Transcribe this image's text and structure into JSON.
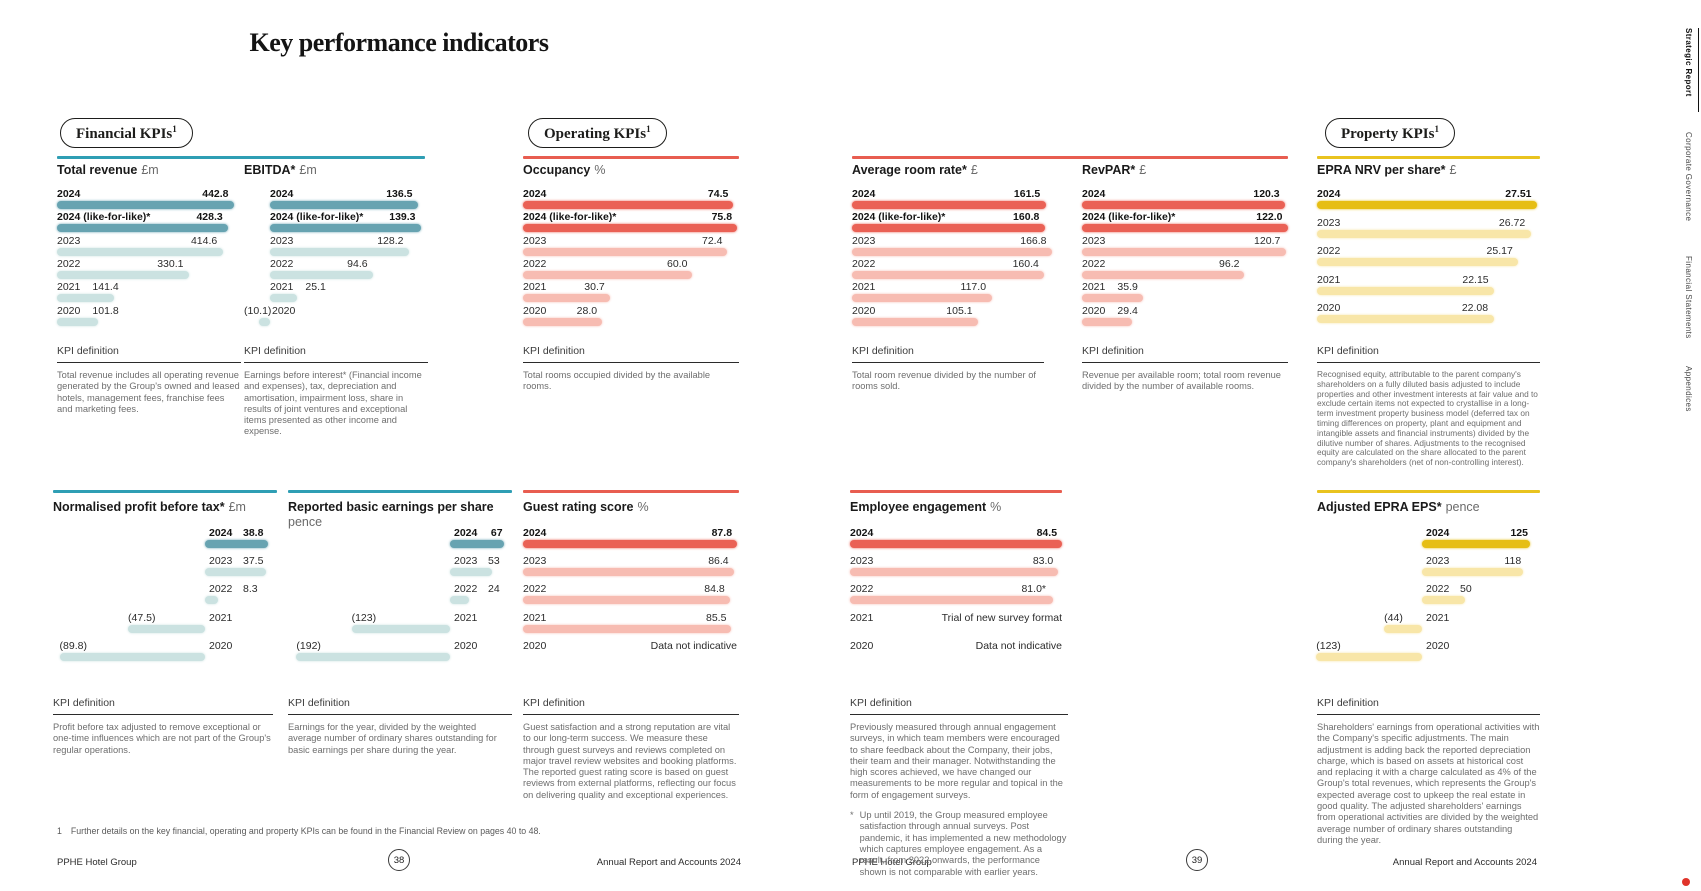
{
  "title": "Key performance indicators",
  "labels": {
    "kpi_definition": "KPI definition"
  },
  "accent_dot_color": "#e0342a",
  "groups": [
    {
      "id": "financial",
      "label": "Financial KPIs",
      "sup": "1",
      "rule_color": "#2F9EB4",
      "bar_dark": "#67A3B1",
      "bar_light": "#CBE2E1"
    },
    {
      "id": "operating",
      "label": "Operating KPIs",
      "sup": "1",
      "rule_color": "#E85D50",
      "bar_dark": "#EA6155",
      "bar_light": "#F7BCB2"
    },
    {
      "id": "property",
      "label": "Property KPIs",
      "sup": "1",
      "rule_color": "#E9C31F",
      "bar_dark": "#E6BE14",
      "bar_light": "#F8E6A8"
    }
  ],
  "chart_data": [
    {
      "id": "total-revenue",
      "type": "bar",
      "group": "financial",
      "title": "Total revenue",
      "unit": "£m",
      "categories": [
        "2024",
        "2024 (like-for-like)*",
        "2023",
        "2022",
        "2021",
        "2020"
      ],
      "values": [
        442.8,
        428.3,
        414.6,
        330.1,
        141.4,
        101.8
      ],
      "displays": [
        "442.8",
        "428.3",
        "414.6",
        "330.1",
        "141.4",
        "101.8"
      ],
      "emphasis": [
        true,
        true,
        false,
        false,
        false,
        false
      ],
      "definition": "Total revenue includes all operating revenue generated by the Group's owned and leased hotels, management fees, franchise fees and marketing fees."
    },
    {
      "id": "ebitda",
      "type": "bar",
      "group": "financial",
      "title": "EBITDA*",
      "unit": "£m",
      "categories": [
        "2024",
        "2024 (like-for-like)*",
        "2023",
        "2022",
        "2021",
        "2020"
      ],
      "values": [
        136.5,
        139.3,
        128.2,
        94.6,
        25.1,
        -10.1
      ],
      "displays": [
        "136.5",
        "139.3",
        "128.2",
        "94.6",
        "25.1",
        "(10.1)"
      ],
      "emphasis": [
        true,
        true,
        false,
        false,
        false,
        false
      ],
      "definition": "Earnings before interest* (Financial income and expenses), tax, depreciation and amortisation, impairment loss, share in results of joint ventures and exceptional items presented as other income and expense."
    },
    {
      "id": "occupancy",
      "type": "bar",
      "group": "operating",
      "title": "Occupancy",
      "unit": "%",
      "categories": [
        "2024",
        "2024 (like-for-like)*",
        "2023",
        "2022",
        "2021",
        "2020"
      ],
      "values": [
        74.5,
        75.8,
        72.4,
        60.0,
        30.7,
        28.0
      ],
      "displays": [
        "74.5",
        "75.8",
        "72.4",
        "60.0",
        "30.7",
        "28.0"
      ],
      "emphasis": [
        true,
        true,
        false,
        false,
        false,
        false
      ],
      "definition": "Total rooms occupied divided by the available rooms."
    },
    {
      "id": "avg-room-rate",
      "type": "bar",
      "group": "operating",
      "title": "Average room rate*",
      "unit": "£",
      "categories": [
        "2024",
        "2024 (like-for-like)*",
        "2023",
        "2022",
        "2021",
        "2020"
      ],
      "values": [
        161.5,
        160.8,
        166.8,
        160.4,
        117.0,
        105.1
      ],
      "displays": [
        "161.5",
        "160.8",
        "166.8",
        "160.4",
        "117.0",
        "105.1"
      ],
      "emphasis": [
        true,
        true,
        false,
        false,
        false,
        false
      ],
      "definition": "Total room revenue divided by the number of rooms sold."
    },
    {
      "id": "revpar",
      "type": "bar",
      "group": "operating",
      "title": "RevPAR*",
      "unit": "£",
      "categories": [
        "2024",
        "2024 (like-for-like)*",
        "2023",
        "2022",
        "2021",
        "2020"
      ],
      "values": [
        120.3,
        122.0,
        120.7,
        96.2,
        35.9,
        29.4
      ],
      "displays": [
        "120.3",
        "122.0",
        "120.7",
        "96.2",
        "35.9",
        "29.4"
      ],
      "emphasis": [
        true,
        true,
        false,
        false,
        false,
        false
      ],
      "definition": "Revenue per available room; total room revenue divided by the number of available rooms."
    },
    {
      "id": "epra-nrv",
      "type": "bar",
      "group": "property",
      "title": "EPRA NRV per share*",
      "unit": "£",
      "categories": [
        "2024",
        "2023",
        "2022",
        "2021",
        "2020"
      ],
      "values": [
        27.51,
        26.72,
        25.17,
        22.15,
        22.08
      ],
      "displays": [
        "27.51",
        "26.72",
        "25.17",
        "22.15",
        "22.08"
      ],
      "emphasis": [
        true,
        false,
        false,
        false,
        false
      ],
      "definition": "Recognised equity, attributable to the parent company's shareholders on a fully diluted basis adjusted to include properties and other investment interests at fair value and to exclude certain items not expected to crystallise in a long-term investment property business model (deferred tax on timing differences on property, plant and equipment and intangible assets and financial instruments) divided by the dilutive number of shares. Adjustments to the recognised equity are calculated on the share allocated to the parent company's shareholders (net of non-controlling interest)."
    },
    {
      "id": "normalised-pbt",
      "type": "bar",
      "group": "financial",
      "title": "Normalised profit before tax*",
      "unit": "£m",
      "categories": [
        "2024",
        "2023",
        "2022",
        "2021",
        "2020"
      ],
      "values": [
        38.8,
        37.5,
        8.3,
        -47.5,
        -89.8
      ],
      "displays": [
        "38.8",
        "37.5",
        "8.3",
        "(47.5)",
        "(89.8)"
      ],
      "emphasis": [
        true,
        false,
        false,
        false,
        false
      ],
      "definition": "Profit before tax adjusted to remove exceptional or one-time influences which are not part of the Group's regular operations."
    },
    {
      "id": "reported-eps",
      "type": "bar",
      "group": "financial",
      "title": "Reported basic earnings per share",
      "unit": "pence",
      "categories": [
        "2024",
        "2023",
        "2022",
        "2021",
        "2020"
      ],
      "values": [
        67,
        53,
        24,
        -123,
        -192
      ],
      "displays": [
        "67",
        "53",
        "24",
        "(123)",
        "(192)"
      ],
      "emphasis": [
        true,
        false,
        false,
        false,
        false
      ],
      "definition": "Earnings for the year, divided by the weighted average number of ordinary shares outstanding for basic earnings per share during the year."
    },
    {
      "id": "guest-rating",
      "type": "bar",
      "group": "operating",
      "title": "Guest rating score",
      "unit": "%",
      "categories": [
        "2024",
        "2023",
        "2022",
        "2021",
        "2020"
      ],
      "values": [
        87.8,
        86.4,
        84.8,
        85.5,
        null
      ],
      "displays": [
        "87.8",
        "86.4",
        "84.8",
        "85.5",
        "Data not indicative"
      ],
      "emphasis": [
        true,
        false,
        false,
        false,
        false
      ],
      "definition": "Guest satisfaction and a strong reputation are vital to our long-term success. We measure these through guest surveys and reviews completed on major travel review websites and booking platforms. The reported guest rating score is based on guest reviews from external platforms, reflecting our focus on delivering quality and exceptional experiences."
    },
    {
      "id": "employee-engagement",
      "type": "bar",
      "group": "operating",
      "title": "Employee engagement",
      "unit": "%",
      "categories": [
        "2024",
        "2023",
        "2022",
        "2021",
        "2020"
      ],
      "values": [
        84.5,
        83.0,
        81.0,
        null,
        null
      ],
      "displays": [
        "84.5",
        "83.0",
        "81.0*",
        "Trial of new survey format",
        "Data not indicative"
      ],
      "emphasis": [
        true,
        false,
        false,
        false,
        false
      ],
      "definition": "Previously measured through annual engagement surveys, in which team members were encouraged to share feedback about the Company, their jobs, their team and their manager. Notwithstanding the high scores achieved, we have changed our measurements to be more regular and topical in the form of engagement surveys.",
      "footnote_marker": "*",
      "footnote": "Up until 2019, the Group measured employee satisfaction through annual surveys. Post pandemic, it has implemented a new methodology which captures employee engagement. As a result, from 2022 onwards, the performance shown is not comparable with earlier years."
    },
    {
      "id": "adjusted-epra-eps",
      "type": "bar",
      "group": "property",
      "title": "Adjusted EPRA EPS*",
      "unit": "pence",
      "categories": [
        "2024",
        "2023",
        "2022",
        "2021",
        "2020"
      ],
      "values": [
        125,
        118,
        50,
        -44,
        -123
      ],
      "displays": [
        "125",
        "118",
        "50",
        "(44)",
        "(123)"
      ],
      "emphasis": [
        true,
        false,
        false,
        false,
        false
      ],
      "definition": "Shareholders' earnings from operational activities with the Company's specific adjustments. The main adjustment is adding back the reported depreciation charge, which is based on assets at historical cost and replacing it with a charge calculated as 4% of the Group's total revenues, which represents the Group's expected average cost to upkeep the real estate in good quality. The adjusted shareholders' earnings from operational activities are divided by the weighted average number of ordinary shares outstanding during the year."
    }
  ],
  "page_footnote": {
    "marker": "1",
    "text": "Further details on the key financial, operating and property KPIs can be found in the Financial Review on pages 40 to 48."
  },
  "footers": [
    {
      "brand": "PPHE Hotel Group",
      "page": "38",
      "right": "Annual Report and Accounts 2024"
    },
    {
      "brand": "PPHE Hotel Group",
      "page": "39",
      "right": "Annual Report and Accounts 2024"
    }
  ],
  "sidebar": {
    "tabs": [
      {
        "label": "Strategic Report",
        "active": true
      },
      {
        "label": "Corporate Governance",
        "active": false
      },
      {
        "label": "Financial Statements",
        "active": false
      },
      {
        "label": "Appendices",
        "active": false
      }
    ]
  }
}
